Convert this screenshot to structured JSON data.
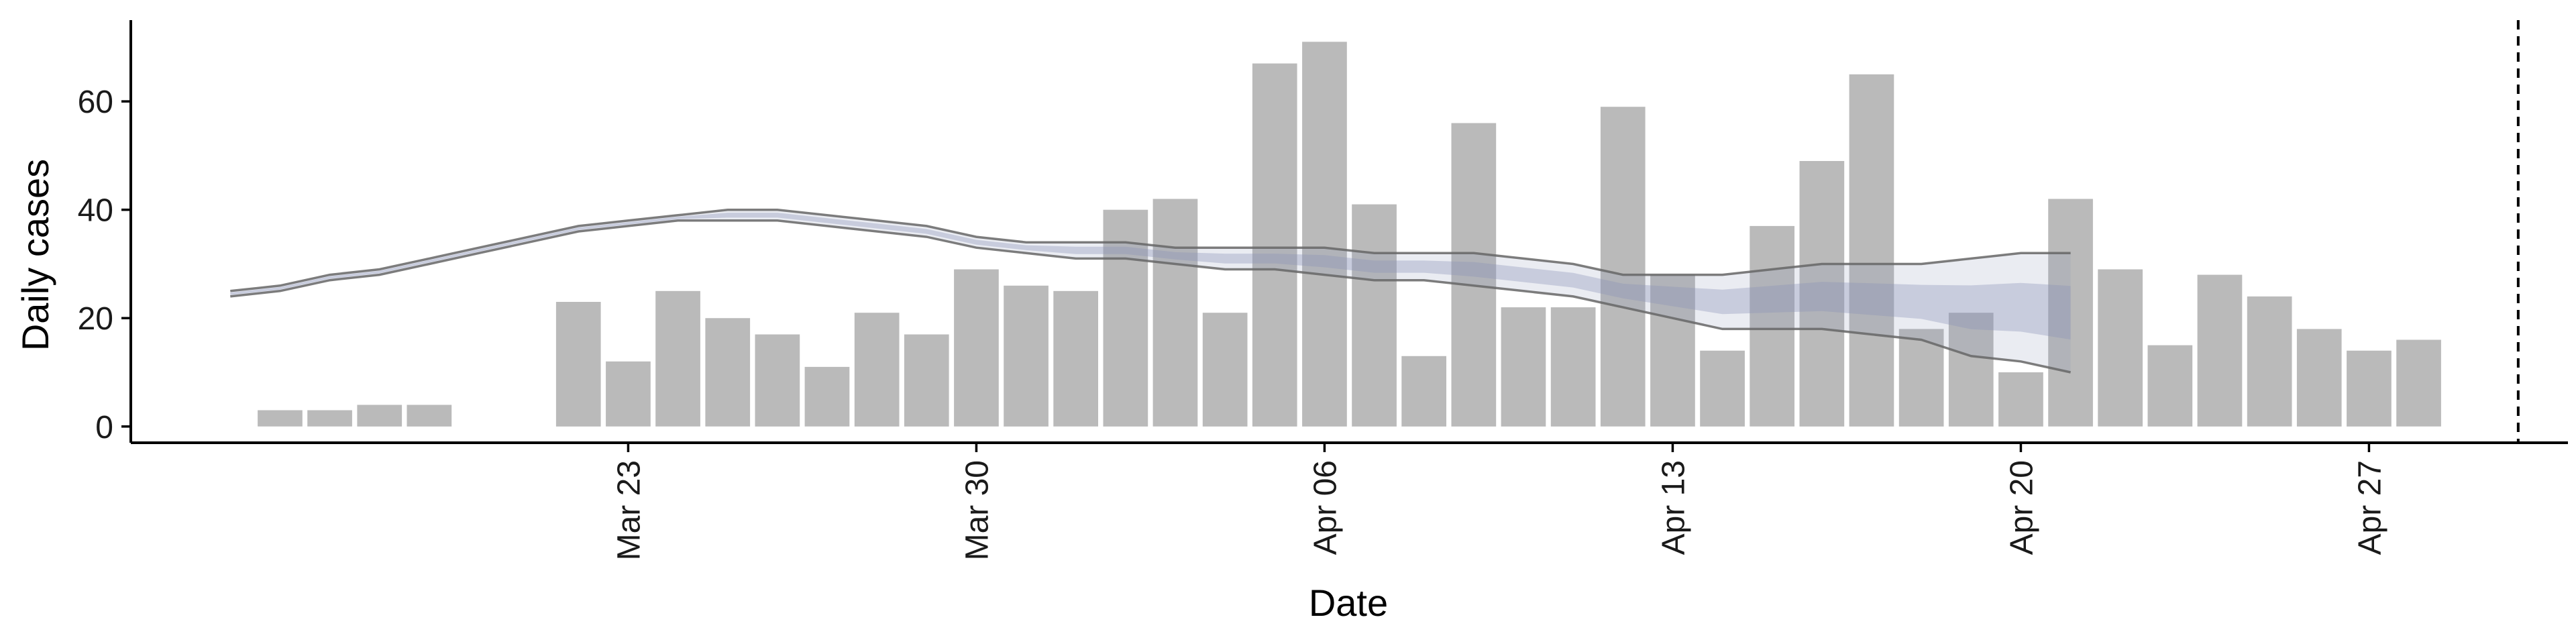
{
  "chart_data": {
    "type": "bar",
    "xlabel": "Date",
    "ylabel": "Daily cases",
    "ylim": [
      -3,
      75
    ],
    "yticks": [
      0,
      20,
      40,
      60
    ],
    "x_range": [
      "2020-03-13",
      "2020-05-01"
    ],
    "xticks": [
      {
        "date": "2020-03-23",
        "label": "Mar 23"
      },
      {
        "date": "2020-03-30",
        "label": "Mar 30"
      },
      {
        "date": "2020-04-06",
        "label": "Apr 06"
      },
      {
        "date": "2020-04-13",
        "label": "Apr 13"
      },
      {
        "date": "2020-04-20",
        "label": "Apr 20"
      },
      {
        "date": "2020-04-27",
        "label": "Apr 27"
      }
    ],
    "bars": {
      "color": "#bababa",
      "dates": [
        "2020-03-16",
        "2020-03-17",
        "2020-03-18",
        "2020-03-19",
        "2020-03-20",
        "2020-03-21",
        "2020-03-22",
        "2020-03-23",
        "2020-03-24",
        "2020-03-25",
        "2020-03-26",
        "2020-03-27",
        "2020-03-28",
        "2020-03-29",
        "2020-03-30",
        "2020-03-31",
        "2020-04-01",
        "2020-04-02",
        "2020-04-03",
        "2020-04-04",
        "2020-04-05",
        "2020-04-06",
        "2020-04-07",
        "2020-04-08",
        "2020-04-09",
        "2020-04-10",
        "2020-04-11",
        "2020-04-12",
        "2020-04-13",
        "2020-04-14",
        "2020-04-15",
        "2020-04-16",
        "2020-04-17",
        "2020-04-18",
        "2020-04-19",
        "2020-04-20",
        "2020-04-21",
        "2020-04-22",
        "2020-04-23",
        "2020-04-24",
        "2020-04-25",
        "2020-04-26",
        "2020-04-27",
        "2020-04-28",
        "2020-04-29",
        "2020-04-30",
        "2020-05-01"
      ],
      "values": [
        3,
        3,
        4,
        4,
        0,
        0,
        23,
        12,
        25,
        20,
        17,
        11,
        21,
        17,
        29,
        26,
        25,
        40,
        42,
        21,
        67,
        71,
        41,
        13,
        56,
        22,
        22,
        59,
        28,
        14,
        37,
        49,
        65,
        18,
        21,
        10,
        42,
        29,
        15,
        28,
        24,
        18,
        14,
        16,
        0,
        0,
        0
      ]
    },
    "band": {
      "color": "#8a93b8",
      "dates": [
        "2020-03-15",
        "2020-03-16",
        "2020-03-17",
        "2020-03-18",
        "2020-03-19",
        "2020-03-20",
        "2020-03-21",
        "2020-03-22",
        "2020-03-23",
        "2020-03-24",
        "2020-03-25",
        "2020-03-26",
        "2020-03-27",
        "2020-03-28",
        "2020-03-29",
        "2020-03-30",
        "2020-03-31",
        "2020-04-01",
        "2020-04-02",
        "2020-04-03",
        "2020-04-04",
        "2020-04-05",
        "2020-04-06",
        "2020-04-07",
        "2020-04-08",
        "2020-04-09",
        "2020-04-10",
        "2020-04-11",
        "2020-04-12",
        "2020-04-13",
        "2020-04-14",
        "2020-04-15",
        "2020-04-16",
        "2020-04-17",
        "2020-04-18",
        "2020-04-19",
        "2020-04-20",
        "2020-04-21"
      ],
      "upper": [
        25,
        26,
        28,
        29,
        31,
        33,
        35,
        37,
        38,
        39,
        40,
        40,
        39,
        38,
        37,
        35,
        34,
        34,
        34,
        33,
        33,
        33,
        33,
        32,
        32,
        32,
        31,
        30,
        28,
        28,
        28,
        29,
        30,
        30,
        30,
        31,
        32,
        32
      ],
      "lower": [
        24,
        25,
        27,
        28,
        30,
        32,
        34,
        36,
        37,
        38,
        38,
        38,
        37,
        36,
        35,
        33,
        32,
        31,
        31,
        30,
        29,
        29,
        28,
        27,
        27,
        26,
        25,
        24,
        22,
        20,
        18,
        18,
        18,
        17,
        16,
        13,
        12,
        10
      ],
      "median": [
        24.5,
        25.5,
        27.5,
        28.5,
        30.5,
        32.5,
        34.5,
        36.5,
        37.5,
        38.5,
        39,
        39,
        38,
        37,
        36,
        34,
        33,
        32.5,
        32.5,
        31.5,
        31,
        31,
        30.5,
        29.5,
        29.5,
        29,
        28,
        27,
        25,
        24,
        23,
        23.5,
        24,
        23.5,
        23,
        22,
        22,
        21
      ]
    },
    "vline": {
      "date": "2020-04-30",
      "style": "dashed"
    }
  }
}
